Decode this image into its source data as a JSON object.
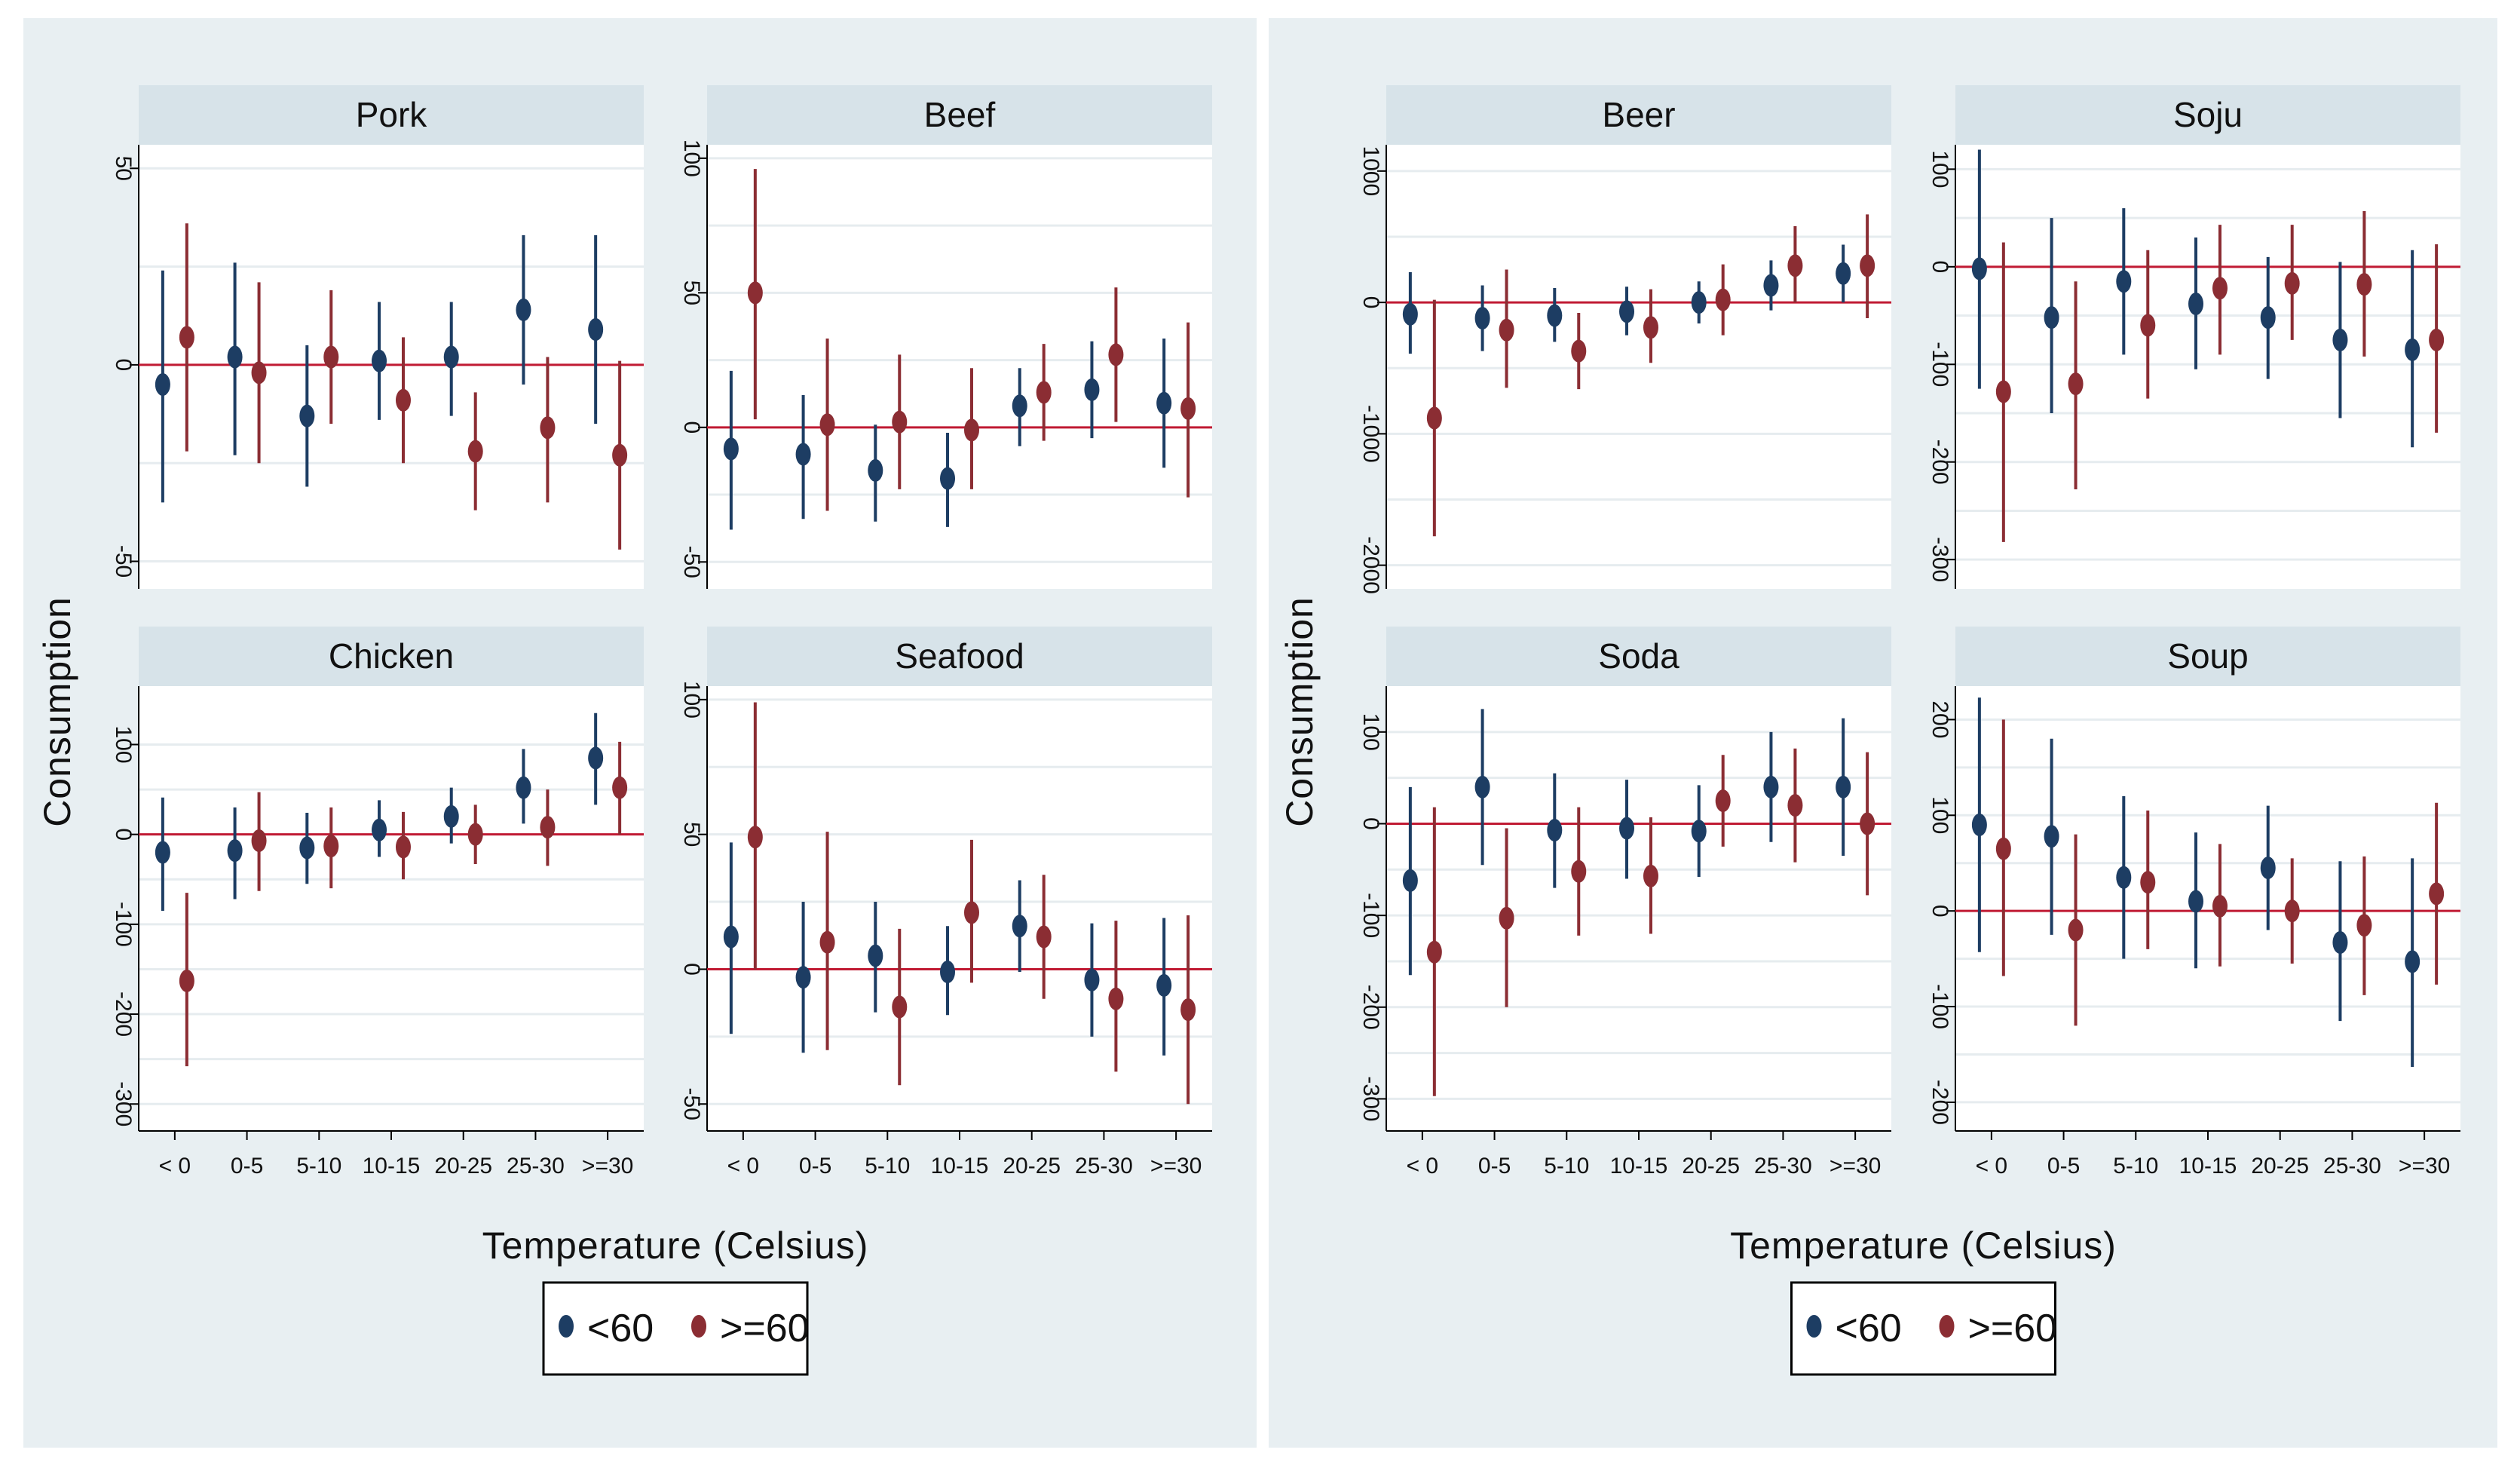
{
  "groups": [
    {
      "ylabel": "Consumption",
      "xlabel": "Temperature (Celsius)",
      "legend": [
        {
          "label": "<60",
          "color": "#1d3d63"
        },
        {
          "label": ">=60",
          "color": "#8b2d33"
        }
      ]
    },
    {
      "ylabel": "Consumption",
      "xlabel": "Temperature (Celsius)",
      "legend": [
        {
          "label": "<60",
          "color": "#1d3d63"
        },
        {
          "label": ">=60",
          "color": "#8b2d33"
        }
      ]
    }
  ],
  "chart_data": [
    {
      "type": "scatter",
      "title": "Pork",
      "group": 0,
      "categories": [
        "< 0",
        "0-5",
        "5-10",
        "10-15",
        "20-25",
        "25-30",
        ">=30"
      ],
      "ylim": [
        -57,
        56
      ],
      "yticks": [
        50,
        0,
        -50
      ],
      "grid": [
        25,
        -25
      ],
      "series": [
        {
          "name": "<60",
          "color": "#1d3d63",
          "values": [
            -5,
            2,
            -13,
            1,
            2,
            14,
            9
          ],
          "lower": [
            -35,
            -23,
            -31,
            -14,
            -13,
            -5,
            -15
          ],
          "upper": [
            24,
            26,
            5,
            16,
            16,
            33,
            33
          ]
        },
        {
          "name": ">=60",
          "color": "#8b2d33",
          "values": [
            7,
            -2,
            2,
            -9,
            -22,
            -16,
            -23
          ],
          "lower": [
            -22,
            -25,
            -15,
            -25,
            -37,
            -35,
            -47
          ],
          "upper": [
            36,
            21,
            19,
            7,
            -7,
            2,
            1
          ]
        }
      ]
    },
    {
      "type": "scatter",
      "title": "Beef",
      "group": 0,
      "categories": [
        "< 0",
        "0-5",
        "5-10",
        "10-15",
        "20-25",
        "25-30",
        ">=30"
      ],
      "ylim": [
        -60,
        105
      ],
      "yticks": [
        100,
        50,
        0,
        -50
      ],
      "grid": [
        75,
        25,
        -25
      ],
      "series": [
        {
          "name": "<60",
          "color": "#1d3d63",
          "values": [
            -8,
            -10,
            -16,
            -19,
            8,
            14,
            9
          ],
          "lower": [
            -38,
            -34,
            -35,
            -37,
            -7,
            -4,
            -15
          ],
          "upper": [
            21,
            12,
            1,
            -2,
            22,
            32,
            33
          ]
        },
        {
          "name": ">=60",
          "color": "#8b2d33",
          "values": [
            50,
            1,
            2,
            -1,
            13,
            27,
            7
          ],
          "lower": [
            3,
            -31,
            -23,
            -23,
            -5,
            2,
            -26
          ],
          "upper": [
            96,
            33,
            27,
            22,
            31,
            52,
            39
          ]
        }
      ]
    },
    {
      "type": "scatter",
      "title": "Chicken",
      "group": 0,
      "categories": [
        "< 0",
        "0-5",
        "5-10",
        "10-15",
        "20-25",
        "25-30",
        ">=30"
      ],
      "ylim": [
        -330,
        165
      ],
      "yticks": [
        100,
        0,
        -100,
        -200,
        -300
      ],
      "grid": [
        50,
        -50,
        -150,
        -250
      ],
      "series": [
        {
          "name": "<60",
          "color": "#1d3d63",
          "values": [
            -20,
            -18,
            -15,
            5,
            20,
            52,
            85
          ],
          "lower": [
            -85,
            -72,
            -55,
            -25,
            -10,
            12,
            33
          ],
          "upper": [
            41,
            30,
            24,
            38,
            52,
            95,
            135
          ]
        },
        {
          "name": ">=60",
          "color": "#8b2d33",
          "values": [
            -163,
            -7,
            -13,
            -14,
            0,
            8,
            52
          ],
          "lower": [
            -258,
            -63,
            -60,
            -50,
            -33,
            -35,
            0
          ],
          "upper": [
            -65,
            47,
            30,
            25,
            33,
            50,
            103
          ]
        }
      ]
    },
    {
      "type": "scatter",
      "title": "Seafood",
      "group": 0,
      "categories": [
        "< 0",
        "0-5",
        "5-10",
        "10-15",
        "20-25",
        "25-30",
        ">=30"
      ],
      "ylim": [
        -60,
        105
      ],
      "yticks": [
        100,
        50,
        0,
        -50
      ],
      "grid": [
        75,
        25,
        -25
      ],
      "series": [
        {
          "name": "<60",
          "color": "#1d3d63",
          "values": [
            12,
            -3,
            5,
            -1,
            16,
            -4,
            -6
          ],
          "lower": [
            -24,
            -31,
            -16,
            -17,
            -1,
            -25,
            -32
          ],
          "upper": [
            47,
            25,
            25,
            16,
            33,
            17,
            19
          ]
        },
        {
          "name": ">=60",
          "color": "#8b2d33",
          "values": [
            49,
            10,
            -14,
            21,
            12,
            -11,
            -15
          ],
          "lower": [
            0,
            -30,
            -43,
            -5,
            -11,
            -38,
            -50
          ],
          "upper": [
            99,
            51,
            15,
            48,
            35,
            18,
            20
          ]
        }
      ]
    },
    {
      "type": "scatter",
      "title": "Beer",
      "group": 1,
      "categories": [
        "< 0",
        "0-5",
        "5-10",
        "10-15",
        "20-25",
        "25-30",
        ">=30"
      ],
      "ylim": [
        -2180,
        1200
      ],
      "yticks": [
        1000,
        0,
        -1000,
        -2000
      ],
      "grid": [
        500,
        -500,
        -1500
      ],
      "series": [
        {
          "name": "<60",
          "color": "#1d3d63",
          "values": [
            -90,
            -120,
            -100,
            -70,
            0,
            130,
            220
          ],
          "lower": [
            -390,
            -370,
            -300,
            -250,
            -160,
            -60,
            0
          ],
          "upper": [
            230,
            130,
            110,
            120,
            160,
            320,
            440
          ]
        },
        {
          "name": ">=60",
          "color": "#8b2d33",
          "values": [
            -880,
            -210,
            -370,
            -190,
            20,
            280,
            280
          ],
          "lower": [
            -1780,
            -650,
            -660,
            -460,
            -250,
            0,
            -120
          ],
          "upper": [
            20,
            250,
            -80,
            100,
            290,
            580,
            670
          ]
        }
      ]
    },
    {
      "type": "scatter",
      "title": "Soju",
      "group": 1,
      "categories": [
        "< 0",
        "0-5",
        "5-10",
        "10-15",
        "20-25",
        "25-30",
        ">=30"
      ],
      "ylim": [
        -330,
        125
      ],
      "yticks": [
        100,
        0,
        -100,
        -200,
        -300
      ],
      "grid": [
        50,
        -50,
        -150,
        -250
      ],
      "series": [
        {
          "name": "<60",
          "color": "#1d3d63",
          "values": [
            -2,
            -52,
            -15,
            -38,
            -52,
            -75,
            -85
          ],
          "lower": [
            -125,
            -150,
            -90,
            -105,
            -115,
            -155,
            -185
          ],
          "upper": [
            120,
            50,
            60,
            30,
            10,
            5,
            17
          ]
        },
        {
          "name": ">=60",
          "color": "#8b2d33",
          "values": [
            -128,
            -120,
            -60,
            -22,
            -17,
            -18,
            -75
          ],
          "lower": [
            -282,
            -228,
            -135,
            -90,
            -75,
            -92,
            -170
          ],
          "upper": [
            25,
            -15,
            17,
            43,
            43,
            57,
            23
          ]
        }
      ]
    },
    {
      "type": "scatter",
      "title": "Soda",
      "group": 1,
      "categories": [
        "< 0",
        "0-5",
        "5-10",
        "10-15",
        "20-25",
        "25-30",
        ">=30"
      ],
      "ylim": [
        -335,
        150
      ],
      "yticks": [
        100,
        0,
        -100,
        -200,
        -300
      ],
      "grid": [
        50,
        -50,
        -150,
        -250
      ],
      "series": [
        {
          "name": "<60",
          "color": "#1d3d63",
          "values": [
            -62,
            40,
            -7,
            -5,
            -8,
            40,
            40
          ],
          "lower": [
            -165,
            -45,
            -70,
            -60,
            -58,
            -20,
            -35
          ],
          "upper": [
            40,
            125,
            55,
            48,
            42,
            100,
            115
          ]
        },
        {
          "name": ">=60",
          "color": "#8b2d33",
          "values": [
            -140,
            -103,
            -52,
            -57,
            25,
            20,
            0
          ],
          "lower": [
            -297,
            -200,
            -122,
            -120,
            -25,
            -42,
            -78
          ],
          "upper": [
            18,
            -5,
            18,
            7,
            75,
            82,
            78
          ]
        }
      ]
    },
    {
      "type": "scatter",
      "title": "Soup",
      "group": 1,
      "categories": [
        "< 0",
        "0-5",
        "5-10",
        "10-15",
        "20-25",
        "25-30",
        ">=30"
      ],
      "ylim": [
        -230,
        235
      ],
      "yticks": [
        200,
        100,
        0,
        -100,
        -200
      ],
      "grid": [
        150,
        50,
        -50,
        -150
      ],
      "series": [
        {
          "name": "<60",
          "color": "#1d3d63",
          "values": [
            90,
            78,
            35,
            10,
            45,
            -33,
            -53
          ],
          "lower": [
            -43,
            -25,
            -50,
            -60,
            -20,
            -115,
            -163
          ],
          "upper": [
            223,
            180,
            120,
            82,
            110,
            52,
            55
          ]
        },
        {
          "name": ">=60",
          "color": "#8b2d33",
          "values": [
            65,
            -20,
            30,
            5,
            0,
            -15,
            18
          ],
          "lower": [
            -68,
            -120,
            -40,
            -58,
            -55,
            -88,
            -77
          ],
          "upper": [
            200,
            80,
            105,
            70,
            55,
            57,
            113
          ]
        }
      ]
    }
  ]
}
